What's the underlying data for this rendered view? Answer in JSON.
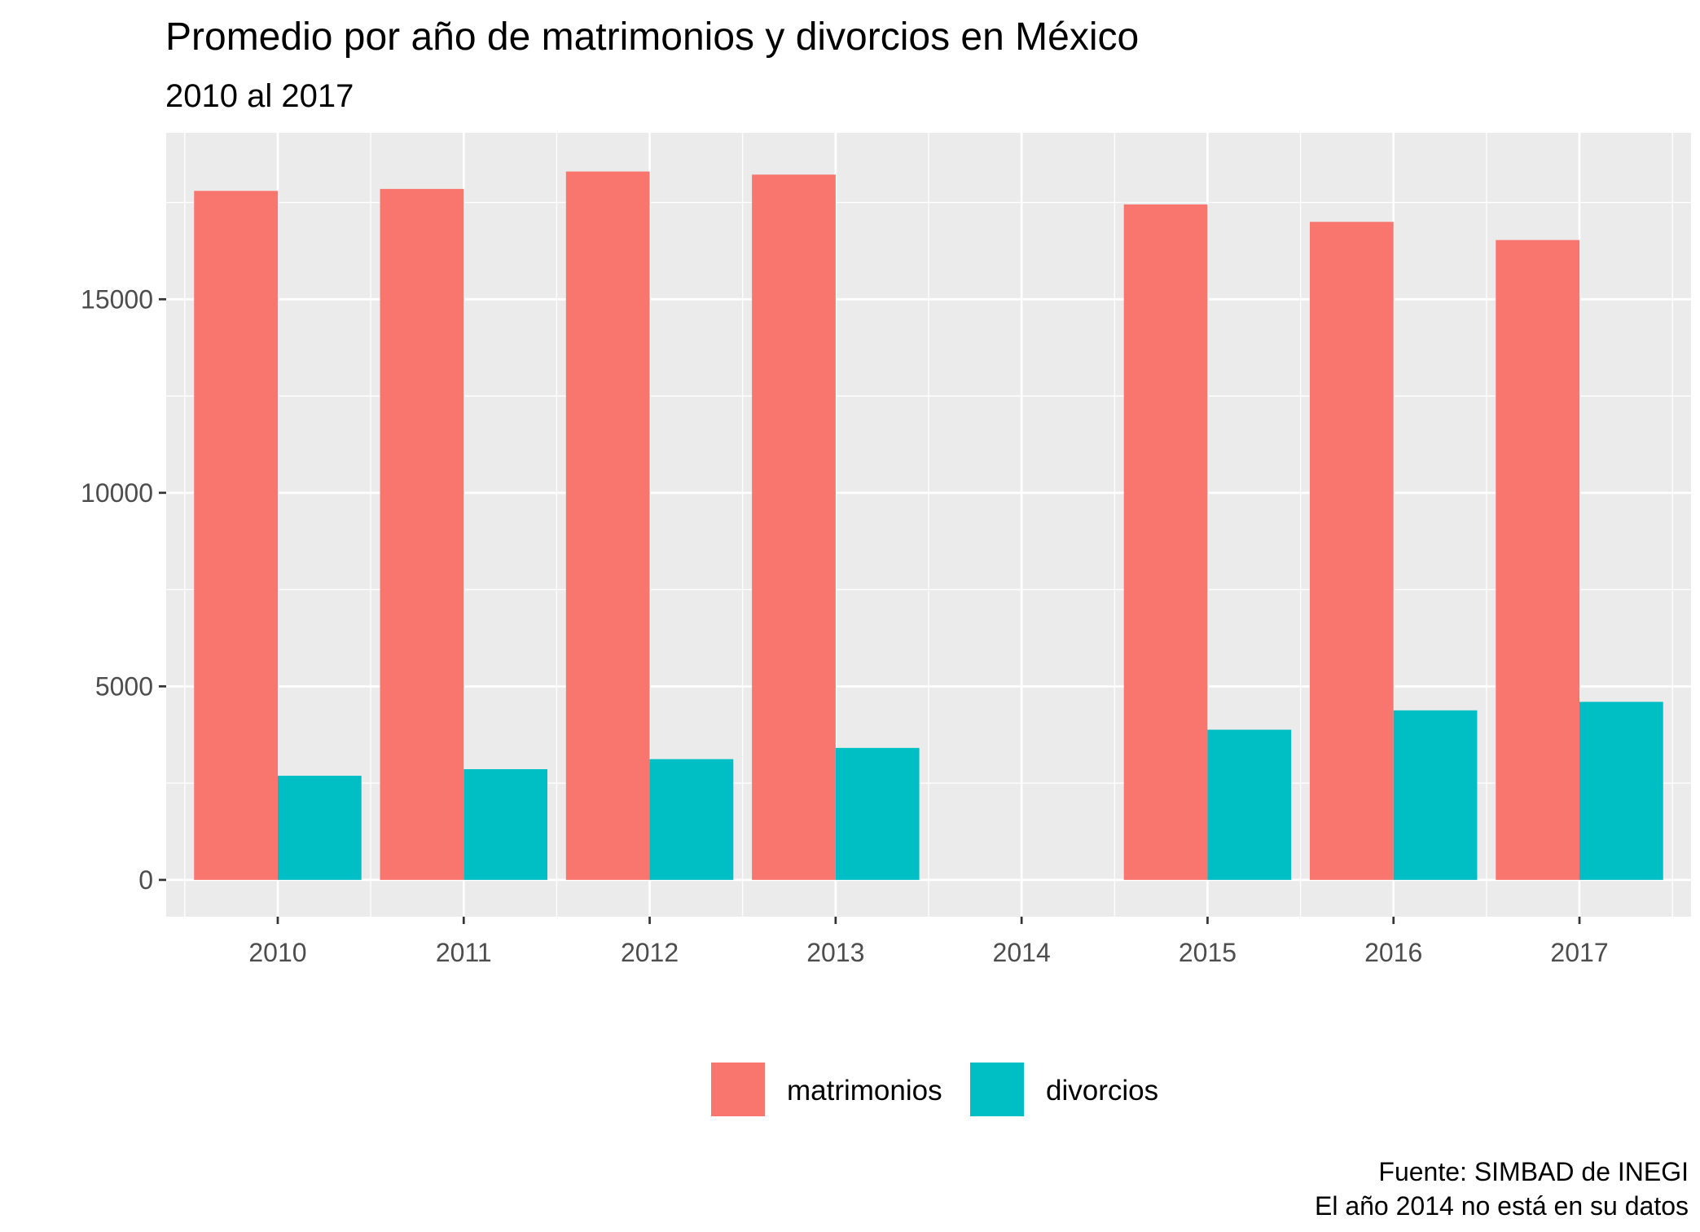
{
  "chart_data": {
    "type": "bar",
    "title": "Promedio por año de matrimonios y divorcios en México",
    "subtitle": "2010 al 2017",
    "xlabel": "",
    "ylabel": "",
    "categories": [
      "2010",
      "2011",
      "2012",
      "2013",
      "2014",
      "2015",
      "2016",
      "2017"
    ],
    "series": [
      {
        "name": "matrimonios",
        "color": "#F8766D",
        "values": [
          17800,
          17850,
          18300,
          18220,
          null,
          17450,
          17000,
          16530
        ]
      },
      {
        "name": "divorcios",
        "color": "#00BFC4",
        "values": [
          2690,
          2860,
          3120,
          3410,
          null,
          3880,
          4380,
          4600
        ]
      }
    ],
    "ylim": [
      -950,
      19300
    ],
    "yticks": [
      0,
      5000,
      10000,
      15000
    ],
    "ytick_labels": [
      "0",
      "5000",
      "10000",
      "15000"
    ],
    "grid": true,
    "panel_background": "#EBEBEB",
    "legend_position": "bottom",
    "caption": [
      "Fuente: SIMBAD de INEGI",
      "El año 2014 no está en su datos"
    ]
  }
}
